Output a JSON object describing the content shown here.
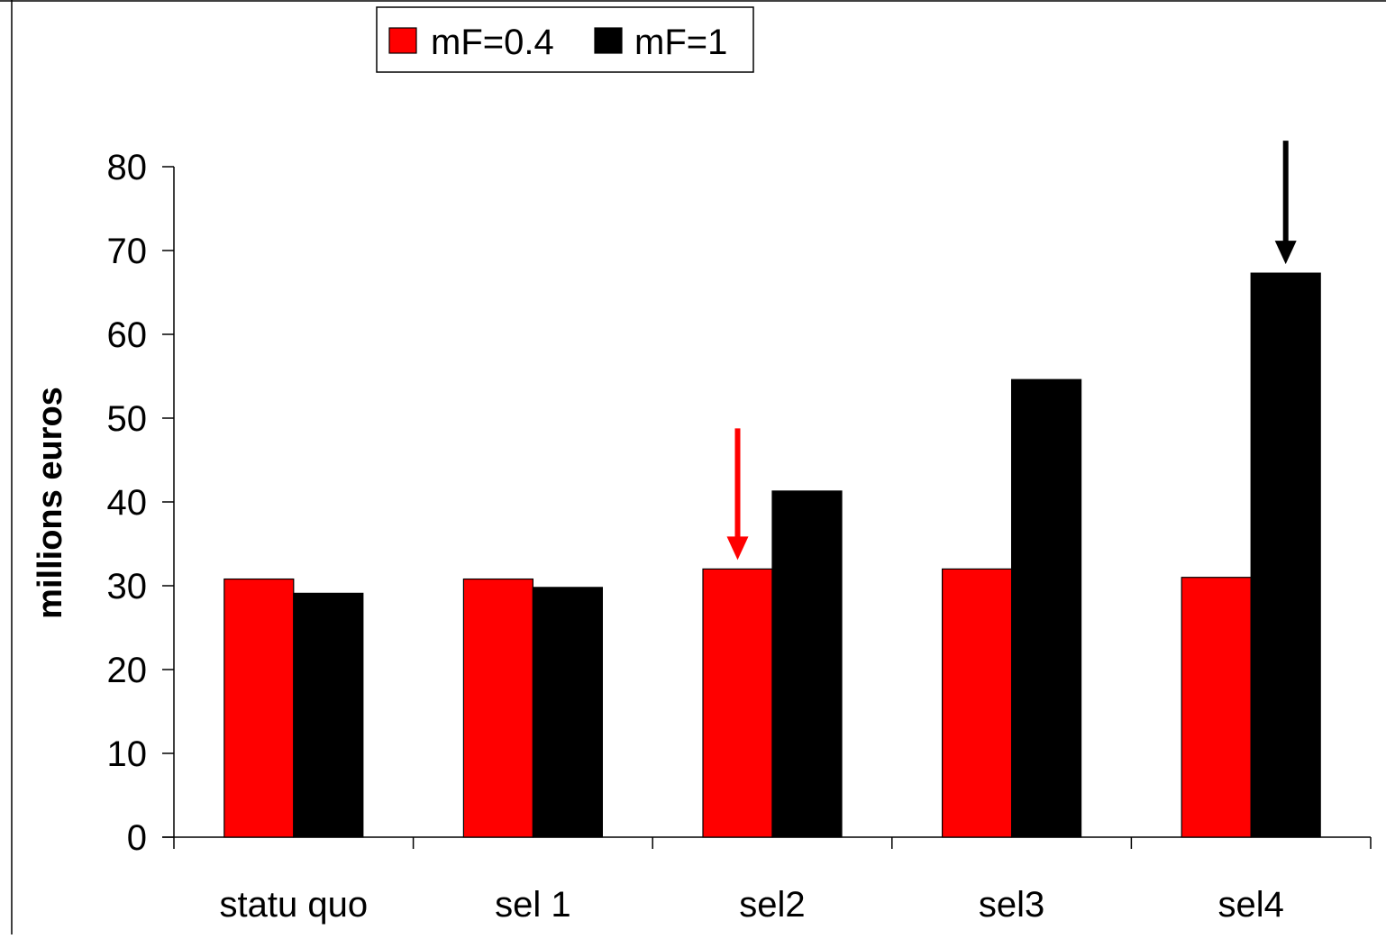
{
  "chart_data": {
    "type": "bar",
    "title": "",
    "xlabel": "",
    "ylabel": "millions euros",
    "categories": [
      "statu quo",
      "sel 1",
      "sel2",
      "sel3",
      "sel4"
    ],
    "series": [
      {
        "name": "mF=0.4",
        "color": "#ff0000",
        "values": [
          30.8,
          30.8,
          32.0,
          32.0,
          31.0
        ]
      },
      {
        "name": "mF=1",
        "color": "#000000",
        "values": [
          29.1,
          29.8,
          41.3,
          54.6,
          67.3
        ]
      }
    ],
    "ylim": [
      0,
      80
    ],
    "yticks": [
      0,
      10,
      20,
      30,
      40,
      50,
      60,
      70,
      80
    ],
    "grid": false,
    "legend_position": "top-center",
    "annotations": [
      {
        "type": "arrow",
        "category": "sel2",
        "series": "mF=0.4",
        "color": "#ff0000"
      },
      {
        "type": "arrow",
        "category": "sel4",
        "series": "mF=1",
        "color": "#000000"
      }
    ]
  }
}
